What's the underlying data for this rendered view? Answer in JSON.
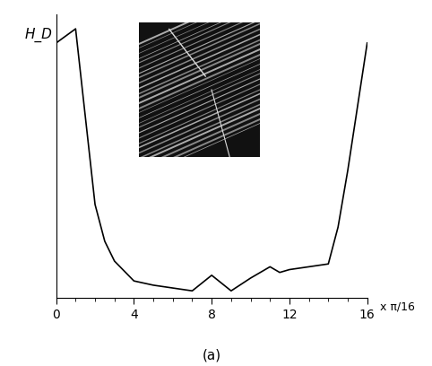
{
  "chart_data": {
    "type": "line",
    "title": "(a)",
    "x_label": "x π/16",
    "y_label": "H_D",
    "x": [
      0,
      1,
      2,
      2.5,
      3,
      4,
      5,
      6,
      7,
      8,
      9,
      10,
      11,
      11.5,
      12,
      13,
      14,
      14.5,
      15,
      16
    ],
    "values": [
      0.9,
      0.95,
      0.33,
      0.2,
      0.13,
      0.06,
      0.045,
      0.035,
      0.025,
      0.08,
      0.025,
      0.07,
      0.11,
      0.09,
      0.1,
      0.11,
      0.12,
      0.25,
      0.45,
      0.9
    ],
    "color": "#000000",
    "xlim": [
      0,
      16
    ],
    "ylim": [
      0,
      1
    ],
    "xticks": [
      0,
      4,
      8,
      12,
      16
    ],
    "tick_labels": "x",
    "grid": false
  }
}
